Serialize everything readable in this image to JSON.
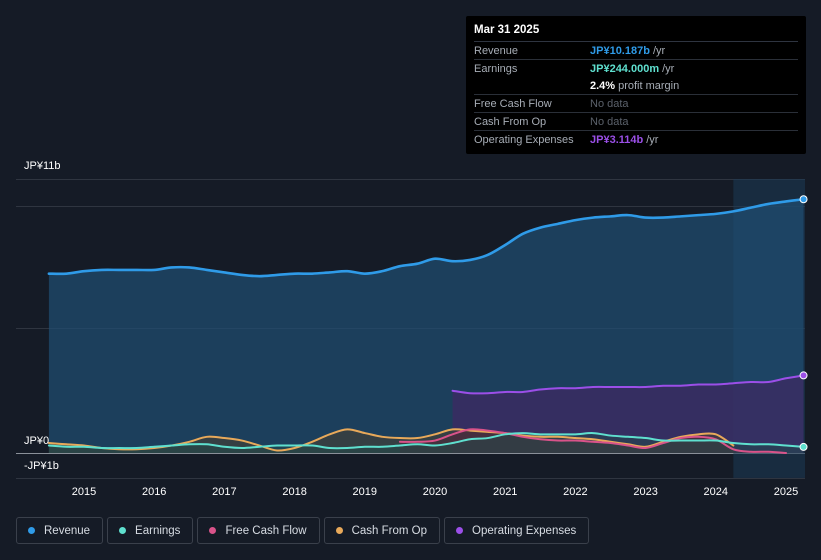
{
  "tooltip": {
    "date": "Mar 31 2025",
    "revenue_label": "Revenue",
    "revenue_value": "JP¥10.187b",
    "revenue_unit": "/yr",
    "earnings_label": "Earnings",
    "earnings_value": "JP¥244.000m",
    "earnings_unit": "/yr",
    "margin_value": "2.4%",
    "margin_text": "profit margin",
    "fcf_label": "Free Cash Flow",
    "fcf_value": "No data",
    "cfo_label": "Cash From Op",
    "cfo_value": "No data",
    "opex_label": "Operating Expenses",
    "opex_value": "JP¥3.114b",
    "opex_unit": "/yr"
  },
  "legend": [
    {
      "label": "Revenue",
      "color": "#2f9be8"
    },
    {
      "label": "Earnings",
      "color": "#5fe0cf"
    },
    {
      "label": "Free Cash Flow",
      "color": "#d9538a"
    },
    {
      "label": "Cash From Op",
      "color": "#e8a95a"
    },
    {
      "label": "Operating Expenses",
      "color": "#9b4fe8"
    }
  ],
  "chart_data": {
    "type": "line",
    "title": "",
    "xlabel": "",
    "ylabel": "",
    "ylim": [
      -1.0,
      11.0
    ],
    "y_tick_labels": [
      "JP¥11b",
      "JP¥0",
      "-JP¥1b"
    ],
    "x_tick_labels": [
      "2015",
      "2016",
      "2017",
      "2018",
      "2019",
      "2020",
      "2021",
      "2022",
      "2023",
      "2024",
      "2025"
    ],
    "forecast_start": 2024.25,
    "series": [
      {
        "name": "Revenue",
        "color": "#2f9be8",
        "x": [
          2014.5,
          2014.75,
          2015.0,
          2015.25,
          2015.5,
          2015.75,
          2016.0,
          2016.25,
          2016.5,
          2016.75,
          2017.0,
          2017.25,
          2017.5,
          2017.75,
          2018.0,
          2018.25,
          2018.5,
          2018.75,
          2019.0,
          2019.25,
          2019.5,
          2019.75,
          2020.0,
          2020.25,
          2020.5,
          2020.75,
          2021.0,
          2021.25,
          2021.5,
          2021.75,
          2022.0,
          2022.25,
          2022.5,
          2022.75,
          2023.0,
          2023.25,
          2023.5,
          2023.75,
          2024.0,
          2024.25,
          2024.5,
          2024.75,
          2025.0,
          2025.25
        ],
        "values": [
          7.2,
          7.2,
          7.3,
          7.35,
          7.35,
          7.35,
          7.35,
          7.45,
          7.45,
          7.35,
          7.25,
          7.15,
          7.1,
          7.15,
          7.2,
          7.2,
          7.25,
          7.3,
          7.2,
          7.3,
          7.5,
          7.6,
          7.8,
          7.7,
          7.75,
          7.95,
          8.35,
          8.8,
          9.05,
          9.2,
          9.35,
          9.45,
          9.5,
          9.55,
          9.45,
          9.45,
          9.5,
          9.55,
          9.6,
          9.7,
          9.85,
          10.0,
          10.1,
          10.187
        ]
      },
      {
        "name": "Operating Expenses",
        "color": "#9b4fe8",
        "x": [
          2020.25,
          2020.5,
          2020.75,
          2021.0,
          2021.25,
          2021.5,
          2021.75,
          2022.0,
          2022.25,
          2022.5,
          2022.75,
          2023.0,
          2023.25,
          2023.5,
          2023.75,
          2024.0,
          2024.25,
          2024.5,
          2024.75,
          2025.0,
          2025.25
        ],
        "values": [
          2.5,
          2.4,
          2.4,
          2.45,
          2.45,
          2.55,
          2.6,
          2.6,
          2.65,
          2.65,
          2.65,
          2.65,
          2.7,
          2.7,
          2.75,
          2.75,
          2.8,
          2.85,
          2.85,
          3.0,
          3.114
        ]
      },
      {
        "name": "Cash From Op",
        "color": "#e8a95a",
        "x": [
          2014.5,
          2014.75,
          2015.0,
          2015.25,
          2015.5,
          2015.75,
          2016.0,
          2016.25,
          2016.5,
          2016.75,
          2017.0,
          2017.25,
          2017.5,
          2017.75,
          2018.0,
          2018.25,
          2018.5,
          2018.75,
          2019.0,
          2019.25,
          2019.5,
          2019.75,
          2020.0,
          2020.25,
          2020.5,
          2020.75,
          2021.0,
          2021.25,
          2021.5,
          2021.75,
          2022.0,
          2022.25,
          2022.5,
          2022.75,
          2023.0,
          2023.25,
          2023.5,
          2023.75,
          2024.0,
          2024.25
        ],
        "values": [
          0.4,
          0.35,
          0.3,
          0.2,
          0.15,
          0.15,
          0.2,
          0.3,
          0.45,
          0.65,
          0.6,
          0.5,
          0.3,
          0.1,
          0.2,
          0.45,
          0.75,
          0.95,
          0.8,
          0.65,
          0.6,
          0.6,
          0.75,
          0.95,
          0.9,
          0.85,
          0.8,
          0.7,
          0.65,
          0.65,
          0.6,
          0.55,
          0.45,
          0.35,
          0.25,
          0.45,
          0.65,
          0.75,
          0.75,
          0.3
        ]
      },
      {
        "name": "Free Cash Flow",
        "color": "#d9538a",
        "x": [
          2019.5,
          2019.75,
          2020.0,
          2020.25,
          2020.5,
          2020.75,
          2021.0,
          2021.25,
          2021.5,
          2021.75,
          2022.0,
          2022.25,
          2022.5,
          2022.75,
          2023.0,
          2023.25,
          2023.5,
          2023.75,
          2024.0,
          2024.25,
          2024.5,
          2024.75,
          2025.0
        ],
        "values": [
          0.45,
          0.45,
          0.5,
          0.75,
          0.95,
          0.9,
          0.8,
          0.65,
          0.55,
          0.5,
          0.5,
          0.45,
          0.4,
          0.3,
          0.2,
          0.4,
          0.6,
          0.65,
          0.55,
          0.15,
          0.05,
          0.05,
          0.0
        ]
      },
      {
        "name": "Earnings",
        "color": "#5fe0cf",
        "x": [
          2014.5,
          2014.75,
          2015.0,
          2015.25,
          2015.5,
          2015.75,
          2016.0,
          2016.25,
          2016.5,
          2016.75,
          2017.0,
          2017.25,
          2017.5,
          2017.75,
          2018.0,
          2018.25,
          2018.5,
          2018.75,
          2019.0,
          2019.25,
          2019.5,
          2019.75,
          2020.0,
          2020.25,
          2020.5,
          2020.75,
          2021.0,
          2021.25,
          2021.5,
          2021.75,
          2022.0,
          2022.25,
          2022.5,
          2022.75,
          2023.0,
          2023.25,
          2023.5,
          2023.75,
          2024.0,
          2024.25,
          2024.5,
          2024.75,
          2025.0,
          2025.25
        ],
        "values": [
          0.3,
          0.25,
          0.25,
          0.2,
          0.2,
          0.2,
          0.25,
          0.3,
          0.35,
          0.35,
          0.25,
          0.2,
          0.25,
          0.3,
          0.3,
          0.3,
          0.2,
          0.2,
          0.25,
          0.25,
          0.3,
          0.35,
          0.3,
          0.4,
          0.55,
          0.6,
          0.75,
          0.8,
          0.75,
          0.75,
          0.75,
          0.8,
          0.7,
          0.65,
          0.6,
          0.5,
          0.5,
          0.5,
          0.5,
          0.4,
          0.35,
          0.35,
          0.3,
          0.244
        ]
      }
    ]
  }
}
